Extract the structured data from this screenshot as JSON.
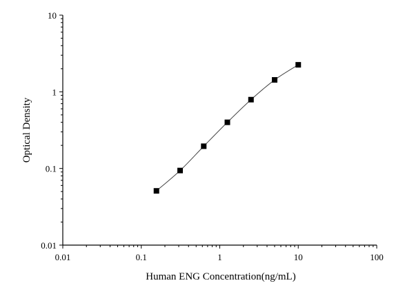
{
  "chart_data": {
    "type": "scatter",
    "title": "",
    "xlabel": "Human ENG Concentration(ng/mL)",
    "ylabel": "Optical Density",
    "x_scale": "log",
    "y_scale": "log",
    "xlim": [
      0.01,
      100
    ],
    "ylim": [
      0.01,
      10
    ],
    "x_ticks": [
      {
        "value": 0.01,
        "label": "0.01"
      },
      {
        "value": 0.1,
        "label": "0.1"
      },
      {
        "value": 1,
        "label": "1"
      },
      {
        "value": 10,
        "label": "10"
      },
      {
        "value": 100,
        "label": "100"
      }
    ],
    "y_ticks": [
      {
        "value": 0.01,
        "label": "0.01"
      },
      {
        "value": 0.1,
        "label": "0.1"
      },
      {
        "value": 1,
        "label": "1"
      },
      {
        "value": 10,
        "label": "10"
      }
    ],
    "grid": false,
    "legend": "none",
    "marker": "square",
    "fit_line": "smooth curve through points",
    "colors": {
      "points": "#000000",
      "line": "#444444",
      "axes": "#000000"
    },
    "series": [
      {
        "x": [
          0.156,
          0.3125,
          0.625,
          1.25,
          2.5,
          5,
          10
        ],
        "y": [
          0.051,
          0.094,
          0.195,
          0.4,
          0.79,
          1.43,
          2.25
        ]
      }
    ]
  }
}
